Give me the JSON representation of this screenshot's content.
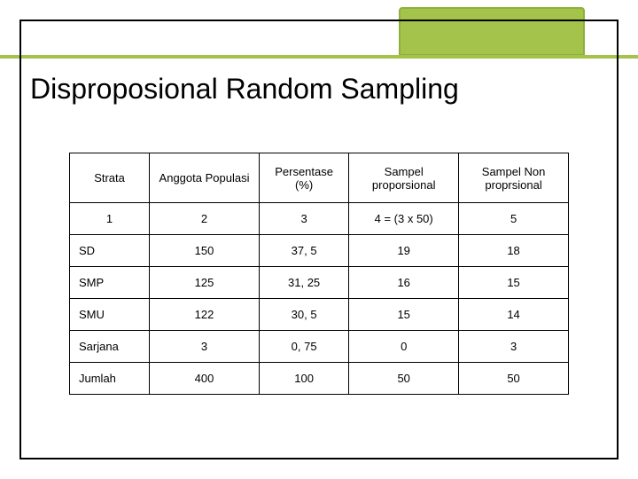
{
  "title": "Disproposional Random Sampling",
  "table": {
    "columns": [
      "Strata",
      "Anggota Populasi",
      "Persentase (%)",
      "Sampel proporsional",
      "Sampel Non proprsional"
    ],
    "subheader": [
      "1",
      "2",
      "3",
      "4 = (3 x 50)",
      "5"
    ],
    "rows": [
      [
        "SD",
        "150",
        "37, 5",
        "19",
        "18"
      ],
      [
        "SMP",
        "125",
        "31, 25",
        "16",
        "15"
      ],
      [
        "SMU",
        "122",
        "30, 5",
        "15",
        "14"
      ],
      [
        "Sarjana",
        "3",
        "0, 75",
        "0",
        "3"
      ],
      [
        "Jumlah",
        "400",
        "100",
        "50",
        "50"
      ]
    ],
    "col_widths": [
      "16%",
      "22%",
      "18%",
      "22%",
      "22%"
    ]
  },
  "colors": {
    "accent": "#a3c34a",
    "accent_border": "#8eb03a",
    "border": "#000000",
    "background": "#ffffff"
  }
}
